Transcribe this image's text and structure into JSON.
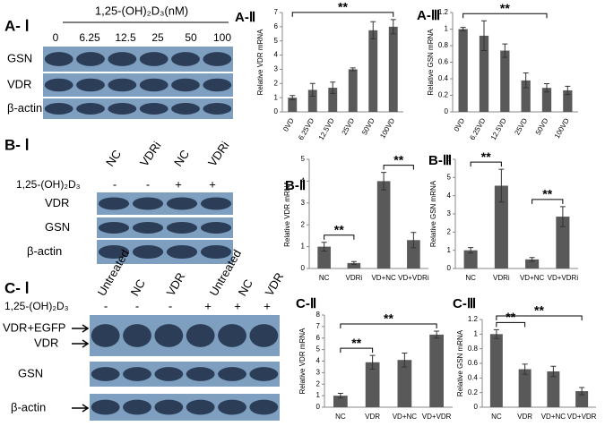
{
  "blots": [
    {
      "title": "A- Ⅰ",
      "treatment": "1,25-(OH)₂D₃(nM)",
      "columns": [
        "0",
        "6.25",
        "12.5",
        "25",
        "50",
        "100"
      ],
      "rows": [
        "GSN",
        "VDR",
        "β-actin"
      ]
    },
    {
      "title": "B- Ⅰ",
      "treatment": "1,25-(OH)₂D₃",
      "columns": [
        "NC",
        "VDRi",
        "NC",
        "VDRi"
      ],
      "signs": [
        "-",
        "-",
        "+",
        "+"
      ],
      "rows": [
        "VDR",
        "GSN",
        "β-actin"
      ]
    },
    {
      "title": "C- Ⅰ",
      "treatment": "1,25-(OH)₂D₃",
      "columns": [
        "Untreated",
        "NC",
        "VDR",
        "Untreated",
        "NC",
        "VDR"
      ],
      "signs": [
        "-",
        "-",
        "-",
        "+",
        "+",
        "+"
      ],
      "rows": [
        "VDR+EGFP",
        "VDR",
        "GSN",
        "β-actin"
      ]
    }
  ],
  "chart_data": [
    {
      "type": "bar",
      "title": "A-Ⅱ",
      "ylabel": "Relative VDR mRNA",
      "categories": [
        "0VD",
        "6.25VD",
        "12.5VD",
        "25VD",
        "50VD",
        "100VD"
      ],
      "values": [
        1.0,
        1.55,
        1.7,
        3.0,
        5.75,
        6.0
      ],
      "errors": [
        0.15,
        0.45,
        0.4,
        0.1,
        0.6,
        0.5
      ],
      "color": "#595959",
      "ylim": [
        0,
        7
      ],
      "yticks": [
        0,
        1,
        2,
        3,
        4,
        5,
        6,
        7
      ],
      "annotations": [
        {
          "text": "**",
          "between": [
            "0VD",
            "100VD"
          ]
        }
      ]
    },
    {
      "type": "bar",
      "title": "A-Ⅲ",
      "ylabel": "Relative GSN mRNA",
      "categories": [
        "0VD",
        "6.25VD",
        "12.5VD",
        "25VD",
        "50VD",
        "100VD"
      ],
      "values": [
        1.0,
        0.92,
        0.74,
        0.38,
        0.29,
        0.26
      ],
      "errors": [
        0.02,
        0.18,
        0.08,
        0.09,
        0.05,
        0.05
      ],
      "color": "#595959",
      "ylim": [
        0,
        1.2
      ],
      "yticks": [
        0,
        0.2,
        0.4,
        0.6,
        0.8,
        1,
        1.2
      ],
      "annotations": [
        {
          "text": "**",
          "between": [
            "0VD",
            "50VD"
          ]
        }
      ]
    },
    {
      "type": "bar",
      "title": "B-Ⅱ",
      "ylabel": "Relative VDR mRNA",
      "categories": [
        "NC",
        "VDRi",
        "VD+NC",
        "VD+VDRi"
      ],
      "values": [
        1.0,
        0.25,
        4.0,
        1.3
      ],
      "errors": [
        0.2,
        0.07,
        0.4,
        0.35
      ],
      "color": "#595959",
      "ylim": [
        0,
        5
      ],
      "yticks": [
        0,
        1,
        2,
        3,
        4,
        5
      ],
      "annotations": [
        {
          "text": "**",
          "between": [
            "NC",
            "VDRi"
          ]
        },
        {
          "text": "**",
          "between": [
            "VD+NC",
            "VD+VDRi"
          ]
        }
      ]
    },
    {
      "type": "bar",
      "title": "B-Ⅲ",
      "ylabel": "Relative GSN mRNA",
      "categories": [
        "NC",
        "VDRi",
        "VD+NC",
        "VD+VDRi"
      ],
      "values": [
        1.0,
        4.55,
        0.5,
        2.85
      ],
      "errors": [
        0.15,
        0.9,
        0.1,
        0.55
      ],
      "color": "#595959",
      "ylim": [
        0,
        6
      ],
      "yticks": [
        0,
        1,
        2,
        3,
        4,
        5,
        6
      ],
      "annotations": [
        {
          "text": "**",
          "between": [
            "NC",
            "VDRi"
          ]
        },
        {
          "text": "**",
          "between": [
            "VD+NC",
            "VD+VDRi"
          ]
        }
      ]
    },
    {
      "type": "bar",
      "title": "C-Ⅱ",
      "ylabel": "Relative VDR mRNA",
      "categories": [
        "NC",
        "VDR",
        "VD+NC",
        "VD+VDR"
      ],
      "values": [
        1.0,
        3.9,
        4.1,
        6.3
      ],
      "errors": [
        0.2,
        0.6,
        0.6,
        0.3
      ],
      "color": "#595959",
      "ylim": [
        0,
        8
      ],
      "yticks": [
        0,
        1,
        2,
        3,
        4,
        5,
        6,
        7,
        8
      ],
      "annotations": [
        {
          "text": "**",
          "between": [
            "NC",
            "VDR"
          ]
        },
        {
          "text": "**",
          "between": [
            "NC",
            "VD+VDR"
          ]
        }
      ]
    },
    {
      "type": "bar",
      "title": "C-Ⅲ",
      "ylabel": "Relative GSN mRNA",
      "categories": [
        "NC",
        "VDR",
        "VD+NC",
        "VD+VDR"
      ],
      "values": [
        1.0,
        0.52,
        0.49,
        0.22
      ],
      "errors": [
        0.06,
        0.07,
        0.07,
        0.05
      ],
      "color": "#595959",
      "ylim": [
        0,
        1.2
      ],
      "yticks": [
        0,
        0.2,
        0.4,
        0.6,
        0.8,
        1,
        1.2
      ],
      "annotations": [
        {
          "text": "**",
          "between": [
            "NC",
            "VDR"
          ]
        },
        {
          "text": "**",
          "between": [
            "NC",
            "VD+VDR"
          ]
        }
      ]
    }
  ]
}
